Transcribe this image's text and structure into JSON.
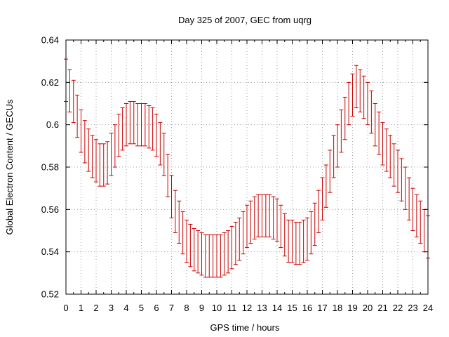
{
  "chart_data": {
    "type": "scatter",
    "title": "Day 325 of 2007, GEC from uqrg",
    "xlabel": "GPS time / hours",
    "ylabel": "Global Electron Content / GECUs",
    "xlim": [
      0,
      24
    ],
    "ylim": [
      0.52,
      0.64
    ],
    "xticks": [
      "0",
      "1",
      "2",
      "3",
      "4",
      "5",
      "6",
      "7",
      "8",
      "9",
      "10",
      "11",
      "12",
      "13",
      "14",
      "15",
      "16",
      "17",
      "18",
      "19",
      "20",
      "21",
      "22",
      "23",
      "24"
    ],
    "yticks": [
      "0.52",
      "0.54",
      "0.56",
      "0.58",
      "0.6",
      "0.62",
      "0.64"
    ],
    "grid": true,
    "series_color": "#cc0000",
    "series": [
      {
        "x": [
          0,
          0.25,
          0.5,
          0.75,
          1,
          1.25,
          1.5,
          1.75,
          2,
          2.25,
          2.5,
          2.75,
          3,
          3.25,
          3.5,
          3.75,
          4,
          4.25,
          4.5,
          4.75,
          5,
          5.25,
          5.5,
          5.75,
          6,
          6.25,
          6.5,
          6.75,
          7,
          7.25,
          7.5,
          7.75,
          8,
          8.25,
          8.5,
          8.75,
          9,
          9.25,
          9.5,
          9.75,
          10,
          10.25,
          10.5,
          10.75,
          11,
          11.25,
          11.5,
          11.75,
          12,
          12.25,
          12.5,
          12.75,
          13,
          13.25,
          13.5,
          13.75,
          14,
          14.25,
          14.5,
          14.75,
          15,
          15.25,
          15.5,
          15.75,
          16,
          16.25,
          16.5,
          16.75,
          17,
          17.25,
          17.5,
          17.75,
          18,
          18.25,
          18.5,
          18.75,
          19,
          19.25,
          19.5,
          19.75,
          20,
          20.25,
          20.5,
          20.75,
          21,
          21.25,
          21.5,
          21.75,
          22,
          22.25,
          22.5,
          22.75,
          23,
          23.25,
          23.5,
          23.75,
          24
        ],
        "y": [
          0.621,
          0.616,
          0.611,
          0.604,
          0.597,
          0.592,
          0.588,
          0.585,
          0.583,
          0.581,
          0.581,
          0.582,
          0.586,
          0.59,
          0.595,
          0.598,
          0.6,
          0.601,
          0.601,
          0.6,
          0.6,
          0.6,
          0.599,
          0.598,
          0.595,
          0.591,
          0.586,
          0.576,
          0.566,
          0.559,
          0.554,
          0.549,
          0.545,
          0.543,
          0.541,
          0.54,
          0.539,
          0.538,
          0.538,
          0.538,
          0.538,
          0.538,
          0.539,
          0.54,
          0.542,
          0.544,
          0.546,
          0.549,
          0.552,
          0.554,
          0.556,
          0.557,
          0.557,
          0.557,
          0.557,
          0.556,
          0.555,
          0.552,
          0.548,
          0.545,
          0.545,
          0.544,
          0.544,
          0.545,
          0.546,
          0.549,
          0.553,
          0.559,
          0.565,
          0.571,
          0.578,
          0.585,
          0.59,
          0.597,
          0.603,
          0.61,
          0.614,
          0.618,
          0.616,
          0.613,
          0.61,
          0.606,
          0.6,
          0.596,
          0.591,
          0.588,
          0.585,
          0.581,
          0.578,
          0.574,
          0.57,
          0.565,
          0.56,
          0.557,
          0.554,
          0.55,
          0.547
        ],
        "error": 0.01
      }
    ]
  }
}
